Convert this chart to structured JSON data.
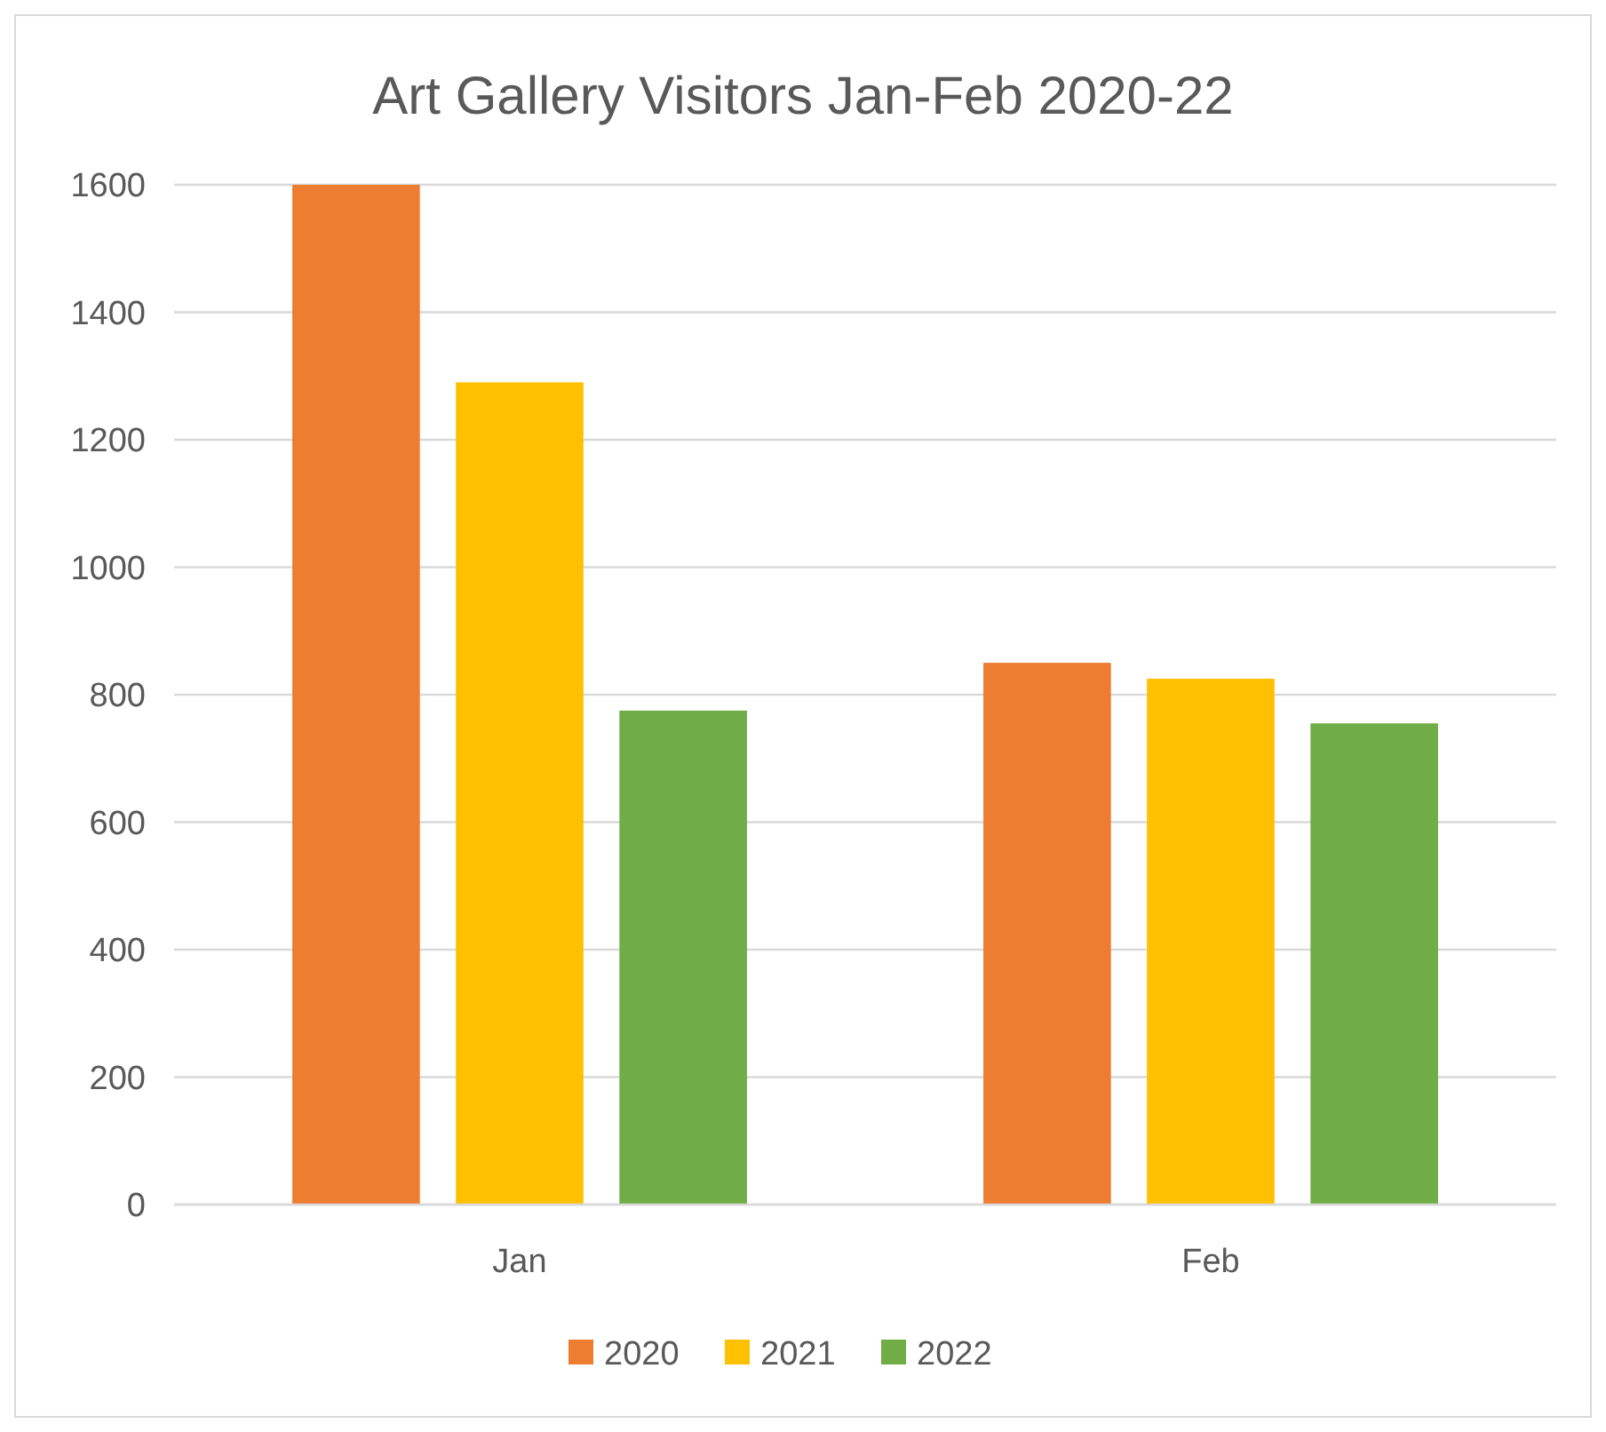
{
  "chart_data": {
    "type": "bar",
    "title": "Art Gallery Visitors Jan-Feb 2020-22",
    "categories": [
      "Jan",
      "Feb"
    ],
    "series": [
      {
        "name": "2020",
        "color": "#ed7d31",
        "values": [
          1600,
          850
        ]
      },
      {
        "name": "2021",
        "color": "#ffc000",
        "values": [
          1290,
          825
        ]
      },
      {
        "name": "2022",
        "color": "#70ad47",
        "values": [
          775,
          755
        ]
      }
    ],
    "ylim": [
      0,
      1600
    ],
    "yticks": [
      0,
      200,
      400,
      600,
      800,
      1000,
      1200,
      1400,
      1600
    ],
    "grid": "y",
    "legend": "bottom"
  }
}
